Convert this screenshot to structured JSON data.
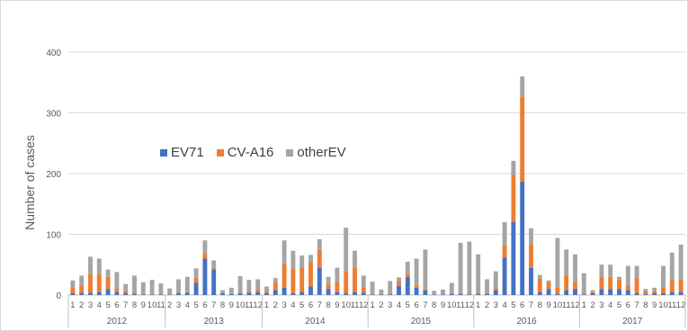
{
  "colors": {
    "EV71": "#4472C4",
    "CV-A16": "#ED7D31",
    "otherEV": "#A5A5A5",
    "grid": "#D9D9D9",
    "text": "#595959"
  },
  "chart_data": {
    "type": "bar",
    "stacked": true,
    "ylabel": "Number of cases",
    "xlabel": "",
    "ylim": [
      0,
      400
    ],
    "yticks": [
      0,
      100,
      200,
      300,
      400
    ],
    "grid": "horizontal",
    "legend_position": "upper-left",
    "years": [
      {
        "label": "2012",
        "months": [
          "1",
          "2",
          "3",
          "4",
          "5",
          "6",
          "7",
          "8",
          "9",
          "10",
          "11"
        ]
      },
      {
        "label": "2013",
        "months": [
          "2",
          "3",
          "4",
          "5",
          "6",
          "7",
          "8",
          "9",
          "10",
          "11",
          "12"
        ]
      },
      {
        "label": "2014",
        "months": [
          "1",
          "2",
          "3",
          "4",
          "5",
          "6",
          "7",
          "8",
          "9",
          "10",
          "11",
          "12"
        ]
      },
      {
        "label": "2015",
        "months": [
          "1",
          "2",
          "3",
          "4",
          "5",
          "6",
          "7",
          "8",
          "9",
          "10",
          "11",
          "12"
        ]
      },
      {
        "label": "2016",
        "months": [
          "1",
          "2",
          "3",
          "4",
          "5",
          "6",
          "7",
          "8",
          "9",
          "10",
          "11",
          "12"
        ]
      },
      {
        "label": "2017",
        "months": [
          "1",
          "2",
          "3",
          "4",
          "5",
          "6",
          "7",
          "8",
          "9",
          "10",
          "11",
          "12"
        ]
      }
    ],
    "series": [
      {
        "name": "EV71",
        "values": [
          3,
          4,
          4,
          5,
          10,
          5,
          3,
          2,
          1,
          1,
          1,
          1,
          3,
          4,
          20,
          60,
          42,
          3,
          2,
          3,
          4,
          5,
          3,
          8,
          12,
          3,
          5,
          14,
          45,
          10,
          5,
          3,
          5,
          4,
          1,
          1,
          1,
          15,
          30,
          12,
          8,
          1,
          1,
          2,
          2,
          1,
          2,
          2,
          8,
          62,
          120,
          187,
          45,
          5,
          10,
          2,
          8,
          10,
          1,
          3,
          10,
          10,
          10,
          8,
          3,
          2,
          3,
          3,
          5,
          5
        ]
      },
      {
        "name": "CV-A16",
        "values": [
          10,
          12,
          30,
          30,
          20,
          6,
          3,
          3,
          1,
          1,
          1,
          0,
          0,
          1,
          8,
          8,
          3,
          0,
          0,
          0,
          3,
          5,
          3,
          12,
          40,
          40,
          40,
          40,
          30,
          8,
          15,
          35,
          40,
          8,
          1,
          1,
          2,
          8,
          5,
          3,
          2,
          0,
          0,
          1,
          2,
          2,
          2,
          2,
          3,
          20,
          78,
          140,
          38,
          22,
          10,
          10,
          25,
          12,
          2,
          2,
          20,
          20,
          15,
          8,
          25,
          5,
          3,
          10,
          20,
          20
        ]
      },
      {
        "name": "otherEV",
        "values": [
          11,
          16,
          29,
          25,
          12,
          27,
          12,
          27,
          19,
          23,
          17,
          10,
          23,
          25,
          16,
          22,
          12,
          5,
          10,
          28,
          18,
          16,
          8,
          8,
          38,
          30,
          20,
          12,
          17,
          12,
          25,
          73,
          28,
          20,
          20,
          7,
          20,
          6,
          20,
          45,
          65,
          6,
          8,
          17,
          82,
          85,
          63,
          22,
          28,
          38,
          23,
          33,
          27,
          6,
          4,
          82,
          42,
          45,
          33,
          3,
          20,
          20,
          5,
          32,
          20,
          3,
          6,
          35,
          45,
          58
        ]
      }
    ]
  }
}
